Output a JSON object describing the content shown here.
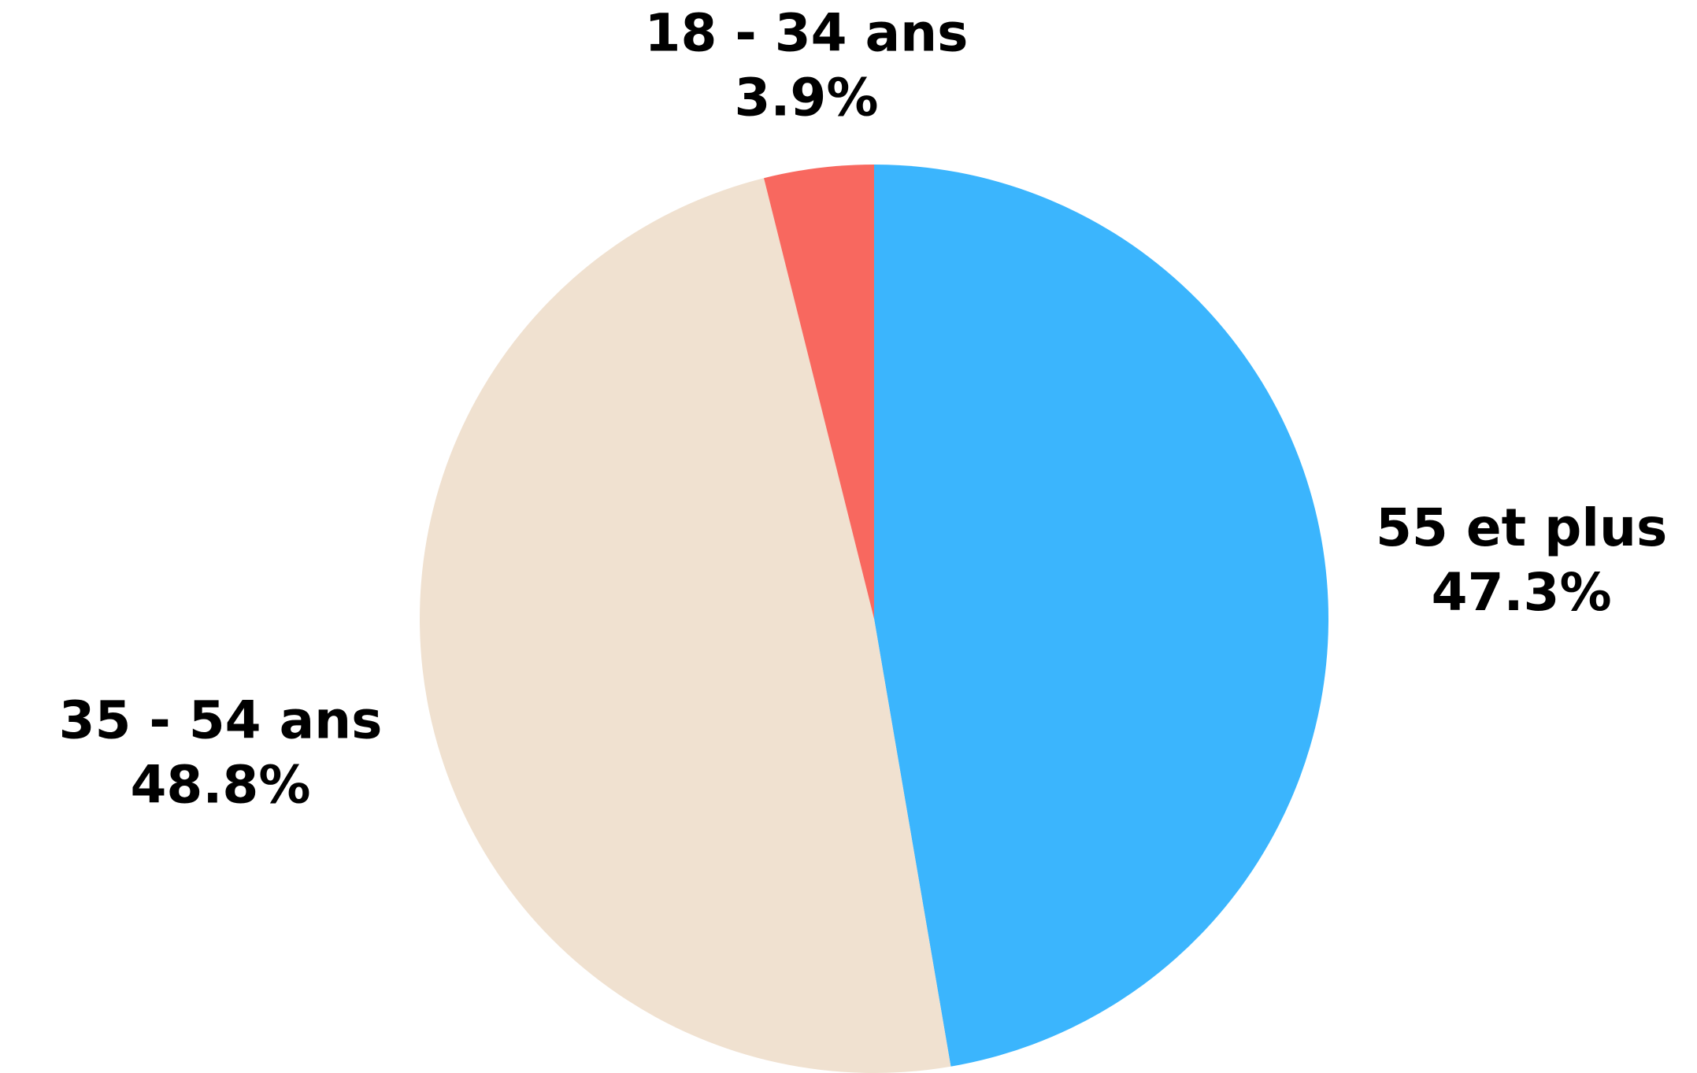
{
  "chart_data": {
    "type": "pie",
    "categories": [
      "55 et plus",
      "35 - 54 ans",
      "18 - 34 ans"
    ],
    "values": [
      47.3,
      48.8,
      3.9
    ],
    "value_labels": [
      "47.3%",
      "48.8%",
      "3.9%"
    ],
    "colors": [
      "#3bb5fd",
      "#f0e1d0",
      "#f8685f"
    ],
    "start_angle": "top",
    "direction": "clockwise"
  }
}
